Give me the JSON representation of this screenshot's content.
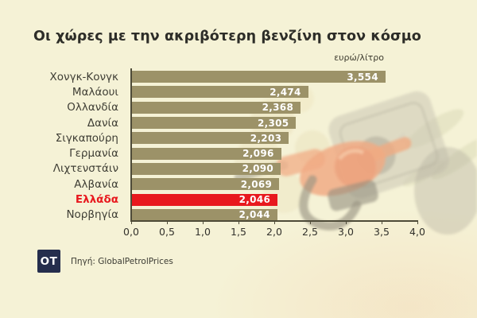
{
  "title": "Οι χώρες με την ακριβότερη βενζίνη στον κόσμο",
  "unit_label": "ευρώ/λίτρο",
  "source": {
    "logo_text": "OT",
    "text": "Πηγή: GlobalPetrolPrices"
  },
  "colors": {
    "background": "#f5f2d6",
    "bar": "#9c9268",
    "highlight": "#e8191e",
    "axis": "#4e4b38",
    "logo_background": "#252e4d",
    "nozzle_orange": "#ee8054"
  },
  "chart_data": {
    "type": "bar",
    "orientation": "horizontal",
    "title": "Οι χώρες με την ακριβότερη βενζίνη στον κόσμο",
    "xlabel": "ευρώ/λίτρο",
    "ylabel": "",
    "categories": [
      "Χονγκ-Κονγκ",
      "Μαλάουι",
      "Ολλανδία",
      "Δανία",
      "Σιγκαπούρη",
      "Γερμανία",
      "Λιχτενστάιν",
      "Αλβανία",
      "Ελλάδα",
      "Νορβηγία"
    ],
    "values": [
      3.554,
      2.474,
      2.368,
      2.305,
      2.203,
      2.096,
      2.09,
      2.069,
      2.046,
      2.044
    ],
    "value_labels": [
      "3,554",
      "2,474",
      "2,368",
      "2,305",
      "2,203",
      "2,096",
      "2,090",
      "2,069",
      "2,046",
      "2,044"
    ],
    "highlight_category": "Ελλάδα",
    "highlight_index": 8,
    "xlim": [
      0,
      4
    ],
    "x_ticks": [
      "0,0",
      "0,5",
      "1,0",
      "1,5",
      "2,0",
      "2,5",
      "3,0",
      "3,5",
      "4,0"
    ],
    "grid": false,
    "legend": false
  }
}
